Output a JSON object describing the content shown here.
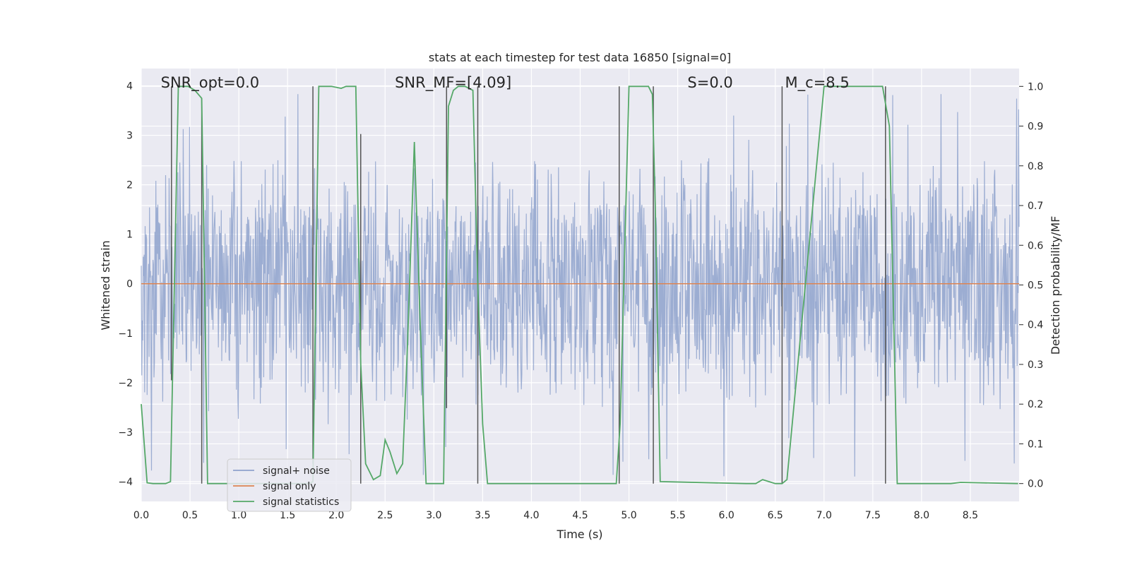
{
  "chart_data": {
    "type": "line",
    "title": "stats at each timestep for test data 16850 [signal=0]",
    "xlabel": "Time (s)",
    "ylabel": "Whitened strain",
    "y2label": "Detection probability/MF",
    "xlim": [
      0,
      9.0
    ],
    "ylim": [
      -4.4,
      4.35
    ],
    "y2lim": [
      -0.045,
      1.045
    ],
    "xticks": [
      0.0,
      0.5,
      1.0,
      1.5,
      2.0,
      2.5,
      3.0,
      3.5,
      4.0,
      4.5,
      5.0,
      5.5,
      6.0,
      6.5,
      7.0,
      7.5,
      8.0,
      8.5
    ],
    "xtick_labels": [
      "0.0",
      "0.5",
      "1.0",
      "1.5",
      "2.0",
      "2.5",
      "3.0",
      "3.5",
      "4.0",
      "4.5",
      "5.0",
      "5.5",
      "6.0",
      "6.5",
      "7.0",
      "7.5",
      "8.0",
      "8.5"
    ],
    "yticks": [
      -4,
      -3,
      -2,
      -1,
      0,
      1,
      2,
      3,
      4
    ],
    "ytick_labels": [
      "−4",
      "−3",
      "−2",
      "−1",
      "0",
      "1",
      "2",
      "3",
      "4"
    ],
    "y2ticks": [
      0.0,
      0.1,
      0.2,
      0.3,
      0.4,
      0.5,
      0.6,
      0.7,
      0.8,
      0.9,
      1.0
    ],
    "y2tick_labels": [
      "0.0",
      "0.1",
      "0.2",
      "0.3",
      "0.4",
      "0.5",
      "0.6",
      "0.7",
      "0.8",
      "0.9",
      "1.0"
    ],
    "grid": true,
    "legend_position": "lower-left",
    "annotations": [
      {
        "text": "SNR_opt=0.0",
        "x": 0.2
      },
      {
        "text": "SNR_MF=[4.09]",
        "x": 2.6
      },
      {
        "text": "S=0.0",
        "x": 5.6
      },
      {
        "text": "M_c=8.5",
        "x": 6.6
      }
    ],
    "series": [
      {
        "name": "signal+ noise",
        "color": "#8ea2cc",
        "axis": "left",
        "kind": "noise",
        "envelope": 1.6,
        "peak_max": 3.9
      },
      {
        "name": "signal only",
        "color": "#dd8452",
        "axis": "left",
        "x": [
          0.0,
          9.0
        ],
        "y": [
          0.0,
          0.0
        ]
      },
      {
        "name": "signal statistics",
        "color": "#55a868",
        "axis": "right",
        "x": [
          0.0,
          0.06,
          0.12,
          0.25,
          0.3,
          0.38,
          0.48,
          0.55,
          0.62,
          0.68,
          1.5,
          1.72,
          1.76,
          1.82,
          1.95,
          2.05,
          2.1,
          2.2,
          2.25,
          2.3,
          2.38,
          2.45,
          2.5,
          2.55,
          2.62,
          2.68,
          2.73,
          2.8,
          2.86,
          2.92,
          3.0,
          3.1,
          3.15,
          3.2,
          3.25,
          3.32,
          3.4,
          3.45,
          3.5,
          3.55,
          3.6,
          4.0,
          4.8,
          4.87,
          4.91,
          5.0,
          5.2,
          5.24,
          5.27,
          5.32,
          6.2,
          6.3,
          6.37,
          6.5,
          6.57,
          6.62,
          7.0,
          7.6,
          7.67,
          7.72,
          7.75,
          8.0,
          8.3,
          8.4,
          8.99
        ],
        "y": [
          0.2,
          0.002,
          0.0,
          0.0,
          0.005,
          1.0,
          1.0,
          0.99,
          0.97,
          0.0,
          0.0,
          0.0,
          0.005,
          1.0,
          1.0,
          0.995,
          1.0,
          1.0,
          0.3,
          0.05,
          0.01,
          0.02,
          0.11,
          0.08,
          0.025,
          0.05,
          0.35,
          0.86,
          0.4,
          0.0,
          0.0,
          0.0,
          0.95,
          0.99,
          1.0,
          1.0,
          0.99,
          0.5,
          0.15,
          0.0,
          0.0,
          0.0,
          0.0,
          0.0,
          0.15,
          1.0,
          1.0,
          0.98,
          0.7,
          0.005,
          0.0,
          0.0,
          0.01,
          0.0,
          0.0,
          0.01,
          1.0,
          1.0,
          0.9,
          0.35,
          0.0,
          0.0,
          0.0,
          0.003,
          0.0
        ]
      }
    ],
    "threshold_lines": [
      {
        "x": 0.31,
        "top": 1.0,
        "bottom": 0.26
      },
      {
        "x": 0.62,
        "top": 0.97,
        "bottom": 0.0
      },
      {
        "x": 1.76,
        "top": 1.0,
        "bottom": 0.05
      },
      {
        "x": 2.25,
        "top": 0.88,
        "bottom": 0.0
      },
      {
        "x": 3.13,
        "top": 1.0,
        "bottom": 0.19
      },
      {
        "x": 3.45,
        "top": 1.0,
        "bottom": 0.0
      },
      {
        "x": 4.9,
        "top": 1.0,
        "bottom": 0.0
      },
      {
        "x": 5.25,
        "top": 1.0,
        "bottom": 0.0
      },
      {
        "x": 6.57,
        "top": 1.0,
        "bottom": 0.0
      },
      {
        "x": 7.63,
        "top": 1.0,
        "bottom": 0.0
      }
    ],
    "colors": {
      "background": "#eaeaf2",
      "grid": "#ffffff",
      "threshold": "#555555",
      "text": "#262626"
    }
  }
}
